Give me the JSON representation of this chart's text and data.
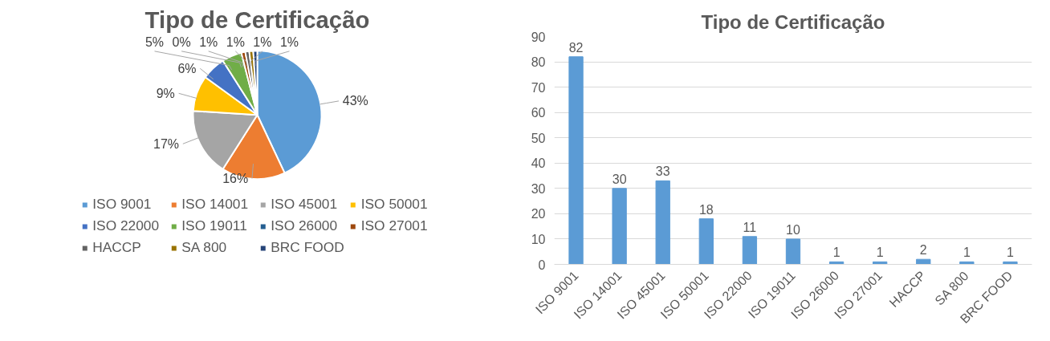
{
  "chart_data": [
    {
      "type": "pie",
      "title": "Tipo de Certificação",
      "categories": [
        "ISO 9001",
        "ISO 14001",
        "ISO 45001",
        "ISO 50001",
        "ISO 22000",
        "ISO 19011",
        "ISO 26000",
        "ISO 27001",
        "HACCP",
        "SA 800",
        "BRC FOOD"
      ],
      "values": [
        43,
        16,
        17,
        9,
        6,
        5,
        0,
        1,
        1,
        1,
        1
      ],
      "value_labels": [
        "43%",
        "16%",
        "17%",
        "9%",
        "6%",
        "5%",
        "0%",
        "1%",
        "1%",
        "1%",
        "1%"
      ],
      "colors": [
        "#5b9bd5",
        "#ed7d31",
        "#a5a5a5",
        "#ffc000",
        "#4472c4",
        "#70ad47",
        "#255e91",
        "#9e480e",
        "#636363",
        "#997300",
        "#264478"
      ],
      "legend": "bottom"
    },
    {
      "type": "bar",
      "title": "Tipo de Certificação",
      "categories": [
        "ISO 9001",
        "ISO 14001",
        "ISO 45001",
        "ISO 50001",
        "ISO 22000",
        "ISO 19011",
        "ISO 26000",
        "ISO 27001",
        "HACCP",
        "SA 800",
        "BRC FOOD"
      ],
      "values": [
        82,
        30,
        33,
        18,
        11,
        10,
        1,
        1,
        2,
        1,
        1
      ],
      "color": "#5b9bd5",
      "ylim": [
        0,
        90
      ],
      "yticks": [
        0,
        10,
        20,
        30,
        40,
        50,
        60,
        70,
        80,
        90
      ],
      "grid": "y",
      "data_labels": true
    }
  ]
}
